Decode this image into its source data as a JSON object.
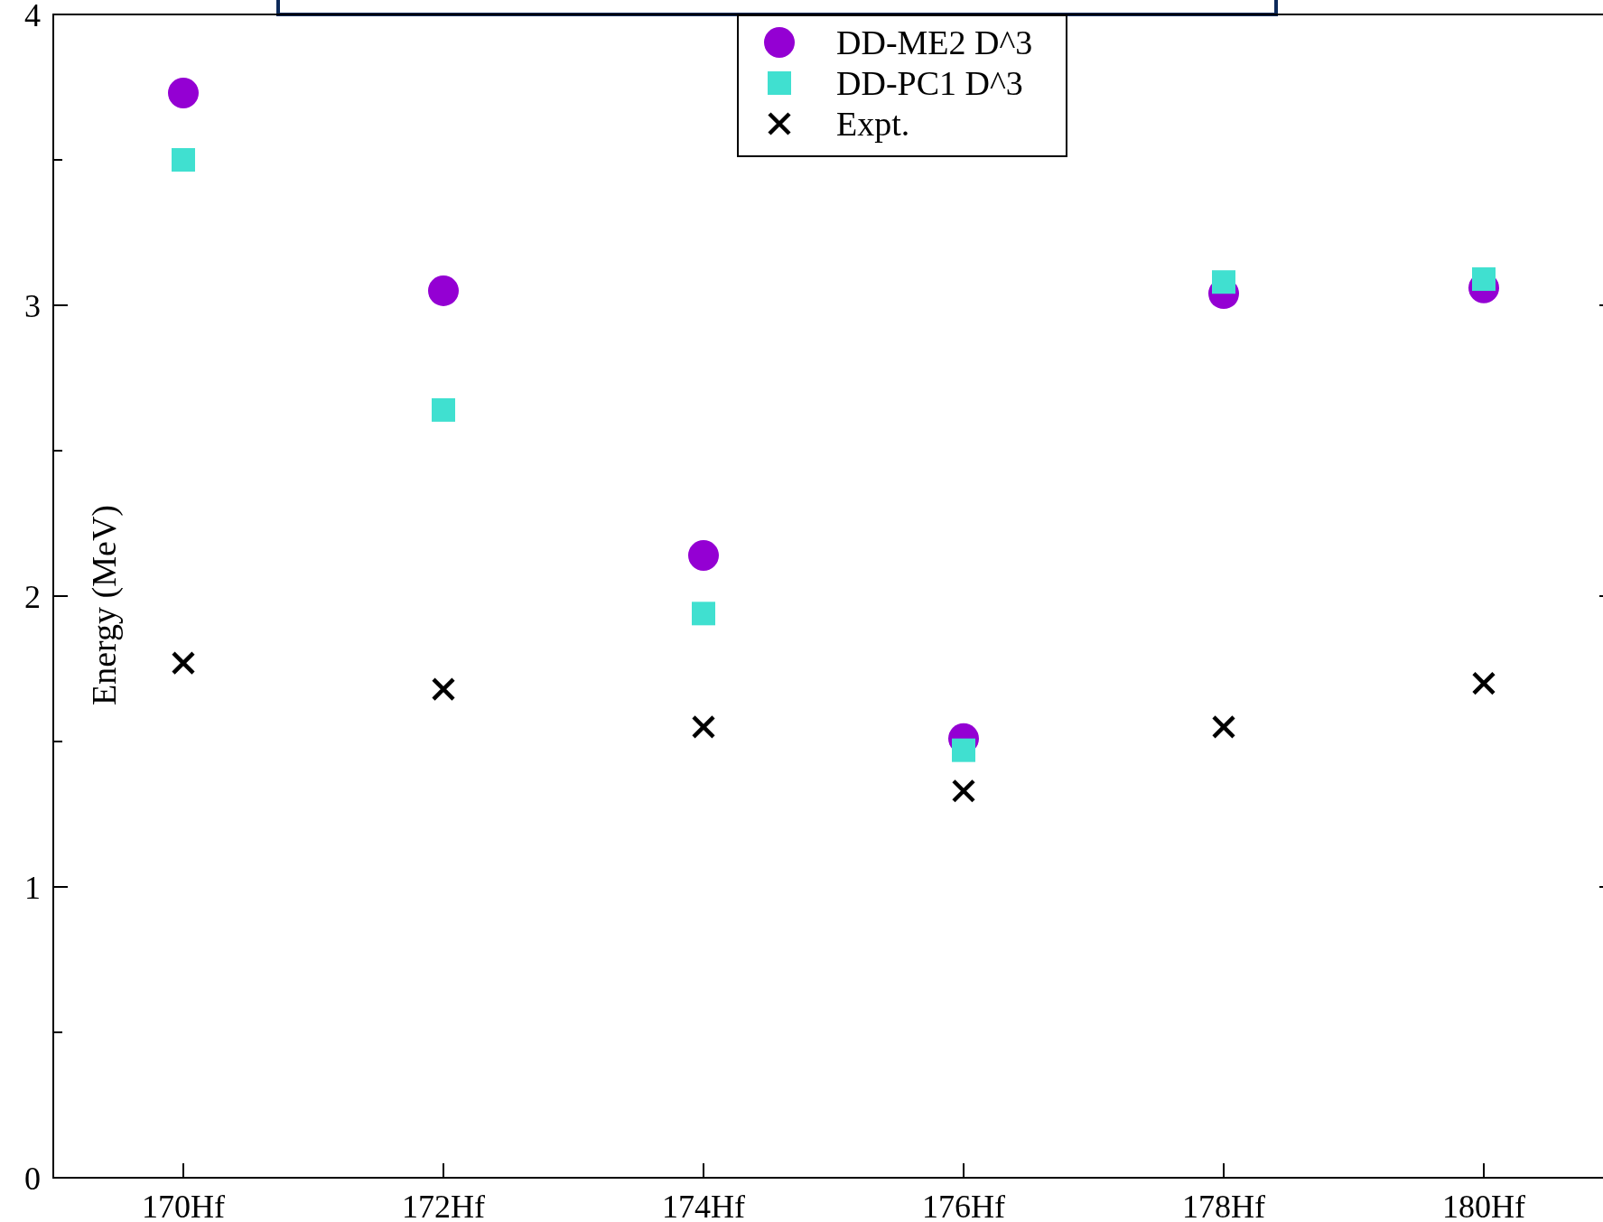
{
  "chart_data": {
    "type": "scatter",
    "ylabel": "Energy (MeV)",
    "categories": [
      "170Hf",
      "172Hf",
      "174Hf",
      "176Hf",
      "178Hf",
      "180Hf"
    ],
    "series": [
      {
        "name": "DD-ME2 D^3",
        "color": "#9400d3",
        "marker": "circle",
        "values": [
          3.73,
          3.05,
          2.14,
          1.51,
          3.04,
          3.06
        ]
      },
      {
        "name": "DD-PC1 D^3",
        "color": "#40e0d0",
        "marker": "square",
        "values": [
          3.5,
          2.64,
          1.94,
          1.47,
          3.08,
          3.09
        ]
      },
      {
        "name": "Expt.",
        "color": "#000000",
        "marker": "cross",
        "values": [
          1.77,
          1.68,
          1.55,
          1.33,
          1.55,
          1.7
        ]
      }
    ],
    "ylim": [
      0,
      4
    ],
    "yticks": [
      0,
      {
        "value": 0.5,
        "label": null
      },
      1,
      {
        "value": 1.5,
        "label": null
      },
      2,
      {
        "value": 2.5,
        "label": null
      },
      3,
      {
        "value": 3.5,
        "label": null
      },
      4
    ],
    "grid": false,
    "legend": "top"
  }
}
